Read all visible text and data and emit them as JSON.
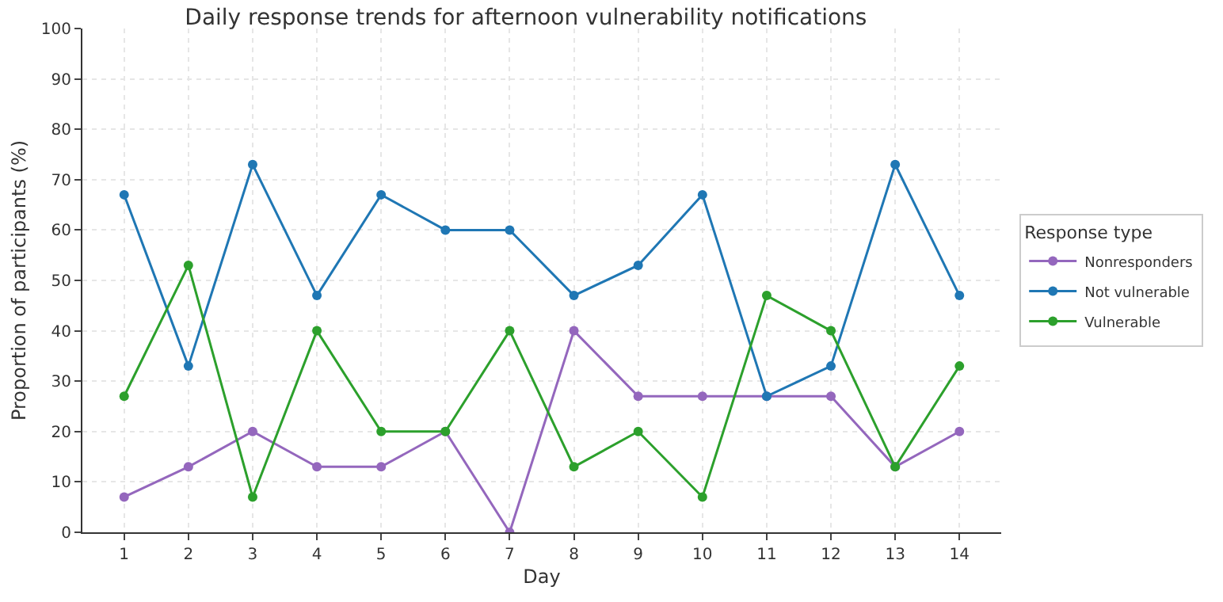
{
  "chart_data": {
    "type": "line",
    "title": "Daily response trends for afternoon vulnerability notifications",
    "xlabel": "Day",
    "ylabel": "Proportion of participants (%)",
    "legend_title": "Response type",
    "x": [
      1,
      2,
      3,
      4,
      5,
      6,
      7,
      8,
      9,
      10,
      11,
      12,
      13,
      14
    ],
    "series": [
      {
        "name": "Nonresponders",
        "color": "#9467bd",
        "values": [
          7,
          13,
          20,
          13,
          13,
          20,
          0,
          40,
          27,
          27,
          27,
          27,
          13,
          20
        ]
      },
      {
        "name": "Not vulnerable",
        "color": "#1f77b4",
        "values": [
          67,
          33,
          73,
          47,
          67,
          60,
          60,
          47,
          53,
          67,
          27,
          33,
          73,
          47
        ]
      },
      {
        "name": "Vulnerable",
        "color": "#2ca02c",
        "values": [
          27,
          53,
          7,
          40,
          20,
          20,
          40,
          13,
          20,
          7,
          47,
          40,
          13,
          33
        ]
      }
    ],
    "xlim": [
      0.35,
      14.65
    ],
    "xticks": [
      1,
      2,
      3,
      4,
      5,
      6,
      7,
      8,
      9,
      10,
      11,
      12,
      13,
      14
    ],
    "ylim": [
      0,
      100
    ],
    "yticks": [
      0,
      10,
      20,
      30,
      40,
      50,
      60,
      70,
      80,
      90,
      100
    ],
    "grid": true,
    "legend": "right",
    "marker": "circle",
    "line_style": "solid"
  }
}
